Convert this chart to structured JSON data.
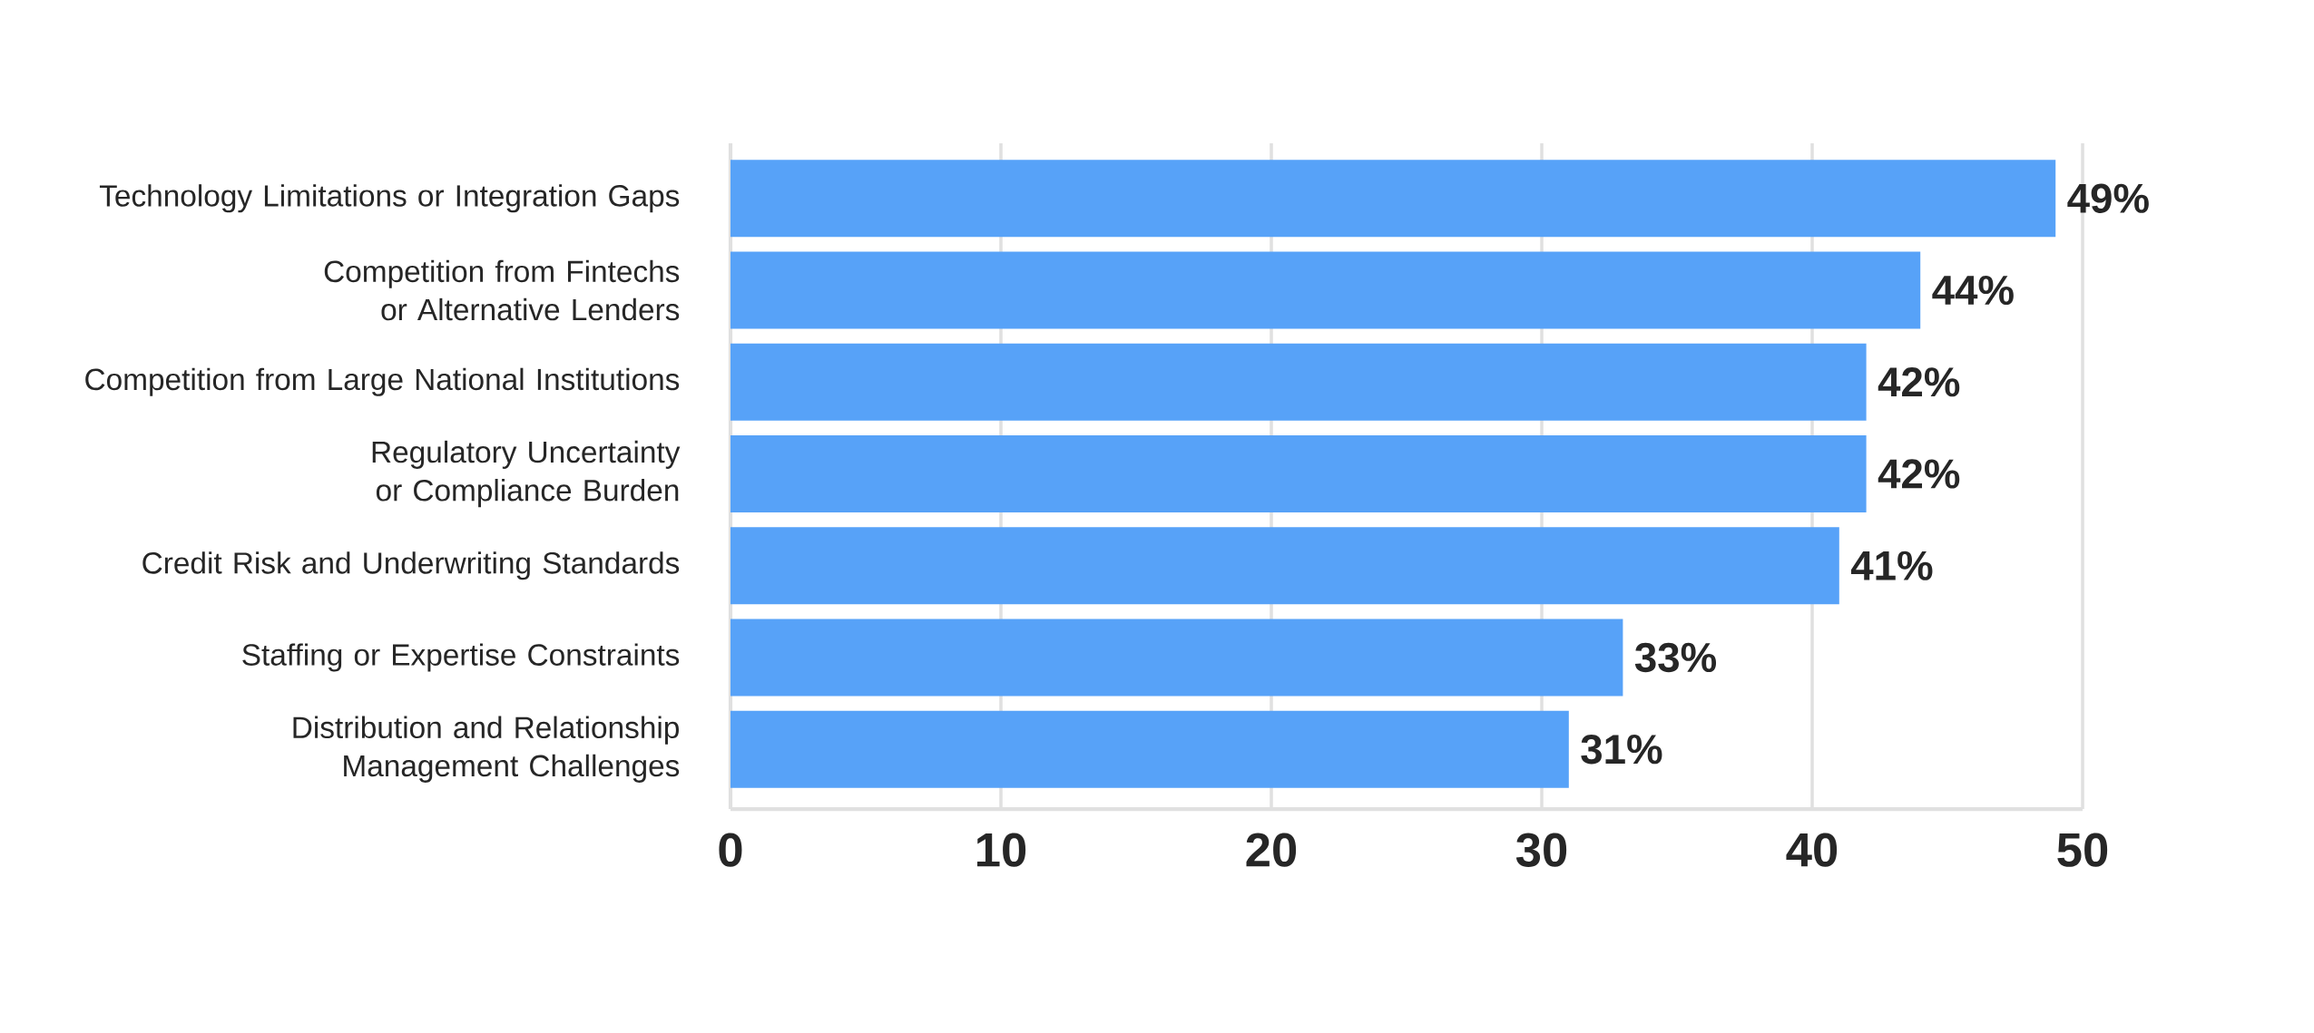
{
  "chart_data": {
    "type": "bar",
    "orientation": "horizontal",
    "categories": [
      "Technology Limitations or Integration Gaps",
      "Competition from Fintechs or Alternative Lenders",
      "Competition from Large National Institutions",
      "Regulatory Uncertainty or Compliance Burden",
      "Credit Risk and Underwriting Standards",
      "Staffing or Expertise Constraints",
      "Distribution and Relationship Management Challenges"
    ],
    "values": [
      49,
      44,
      42,
      42,
      41,
      33,
      31
    ],
    "value_labels": [
      "49%",
      "44%",
      "42%",
      "42%",
      "41%",
      "33%",
      "31%"
    ],
    "color": "#57a2f8",
    "xlim": [
      0,
      50
    ],
    "xticks": [
      0,
      10,
      20,
      30,
      40,
      50
    ],
    "grid": "x"
  }
}
